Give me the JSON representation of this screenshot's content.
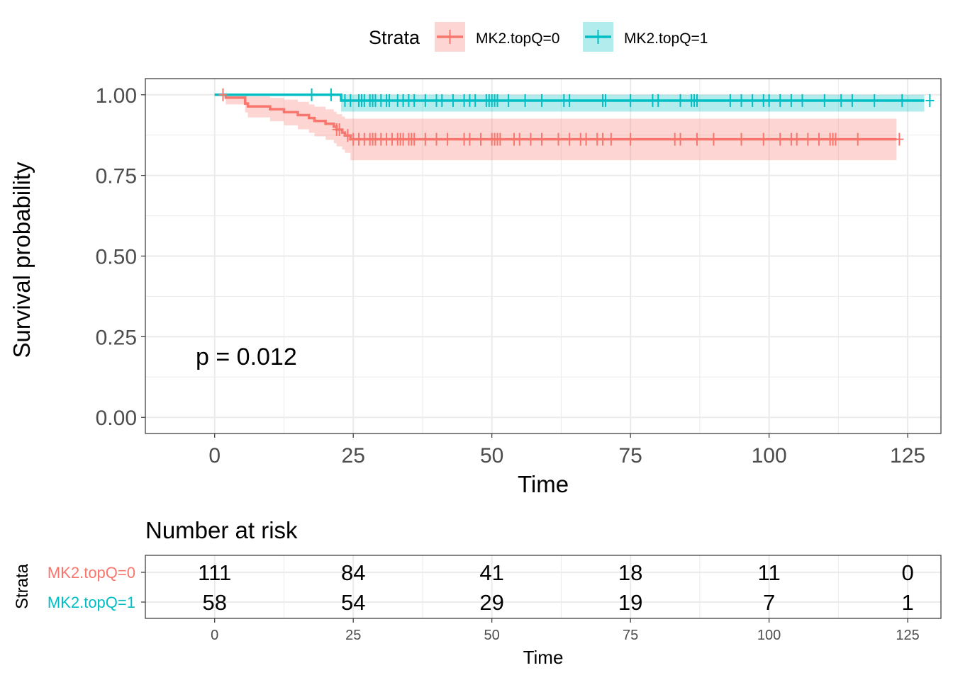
{
  "chart_data": [
    {
      "type": "line",
      "subtype": "kaplan-meier",
      "title": "",
      "xlabel": "Time",
      "ylabel": "Survival probability",
      "xlim": [
        -12.5,
        131
      ],
      "ylim": [
        -0.05,
        1.05
      ],
      "xticks": [
        0,
        25,
        50,
        75,
        100,
        125
      ],
      "yticks": [
        "0.00",
        "0.25",
        "0.50",
        "0.75",
        "1.00"
      ],
      "grid": true,
      "annotation": "p = 0.012",
      "legend": {
        "title": "Strata",
        "placement": "top",
        "entries": [
          "MK2.topQ=0",
          "MK2.topQ=1"
        ]
      },
      "series": [
        {
          "name": "MK2.topQ=0",
          "color": "#F8766D",
          "steps": [
            [
              0,
              1.0
            ],
            [
              2,
              0.991
            ],
            [
              5.5,
              0.973
            ],
            [
              6,
              0.964
            ],
            [
              10,
              0.955
            ],
            [
              12.5,
              0.946
            ],
            [
              15,
              0.937
            ],
            [
              17,
              0.928
            ],
            [
              18,
              0.919
            ],
            [
              20,
              0.91
            ],
            [
              21.5,
              0.901
            ],
            [
              22,
              0.892
            ],
            [
              23,
              0.883
            ],
            [
              23.5,
              0.874
            ],
            [
              24.5,
              0.862
            ],
            [
              123,
              0.862
            ]
          ],
          "ci_upper": [
            [
              0,
              1.0
            ],
            [
              2,
              1.0
            ],
            [
              5.5,
              1.0
            ],
            [
              6,
              0.995
            ],
            [
              10,
              0.99
            ],
            [
              12.5,
              0.985
            ],
            [
              15,
              0.978
            ],
            [
              17,
              0.97
            ],
            [
              18,
              0.963
            ],
            [
              20,
              0.955
            ],
            [
              21.5,
              0.947
            ],
            [
              22,
              0.94
            ],
            [
              23,
              0.932
            ],
            [
              23.5,
              0.926
            ],
            [
              24.5,
              0.926
            ],
            [
              123,
              0.926
            ]
          ],
          "ci_lower": [
            [
              0,
              1.0
            ],
            [
              2,
              0.97
            ],
            [
              5.5,
              0.945
            ],
            [
              6,
              0.93
            ],
            [
              10,
              0.918
            ],
            [
              12.5,
              0.905
            ],
            [
              15,
              0.893
            ],
            [
              17,
              0.882
            ],
            [
              18,
              0.871
            ],
            [
              20,
              0.86
            ],
            [
              21.5,
              0.85
            ],
            [
              22,
              0.84
            ],
            [
              23,
              0.83
            ],
            [
              23.5,
              0.82
            ],
            [
              24.5,
              0.797
            ],
            [
              123,
              0.797
            ]
          ],
          "censor_times": [
            1.5,
            22,
            22.5,
            24,
            25,
            26,
            27,
            28,
            28.5,
            29,
            30,
            31,
            32,
            33,
            33.5,
            34,
            35,
            35.5,
            36,
            38,
            40,
            42,
            45,
            46,
            48,
            50,
            50.5,
            51,
            51.5,
            54,
            55,
            57,
            59,
            62,
            64,
            66,
            67,
            69,
            70,
            71.5,
            75,
            83,
            84,
            87,
            90,
            95,
            99,
            102,
            104,
            105,
            107,
            109,
            111,
            111.5,
            112,
            116,
            123.5
          ]
        },
        {
          "name": "MK2.topQ=1",
          "color": "#00BFC4",
          "steps": [
            [
              0,
              1.0
            ],
            [
              22.8,
              0.982
            ],
            [
              128,
              0.982
            ]
          ],
          "ci_upper": [
            [
              0,
              1.0
            ],
            [
              22.8,
              1.0
            ],
            [
              128,
              1.0
            ]
          ],
          "ci_lower": [
            [
              0,
              1.0
            ],
            [
              22.8,
              0.948
            ],
            [
              128,
              0.948
            ]
          ],
          "censor_times": [
            17.5,
            21,
            23.5,
            24.5,
            26,
            26.5,
            27,
            28,
            28.5,
            29,
            30,
            31,
            31.5,
            33,
            34,
            35,
            36,
            38,
            40,
            41,
            43,
            45,
            46,
            47,
            49,
            49.5,
            50,
            50.5,
            51,
            53,
            56,
            59,
            63,
            64,
            70,
            70.5,
            75,
            79,
            80,
            84,
            86,
            86.5,
            87,
            93,
            95,
            97,
            99,
            100,
            102,
            104,
            106,
            110,
            113,
            115,
            119,
            124,
            129
          ]
        }
      ]
    },
    {
      "type": "table",
      "title": "Number at risk",
      "xlabel": "Time",
      "ylabel": "Strata",
      "xticks": [
        0,
        25,
        50,
        75,
        100,
        125
      ],
      "rows": [
        {
          "name": "MK2.topQ=0",
          "color": "#F8766D",
          "values": [
            111,
            84,
            41,
            18,
            11,
            0
          ]
        },
        {
          "name": "MK2.topQ=1",
          "color": "#00BFC4",
          "values": [
            58,
            54,
            29,
            19,
            7,
            1
          ]
        }
      ]
    }
  ]
}
